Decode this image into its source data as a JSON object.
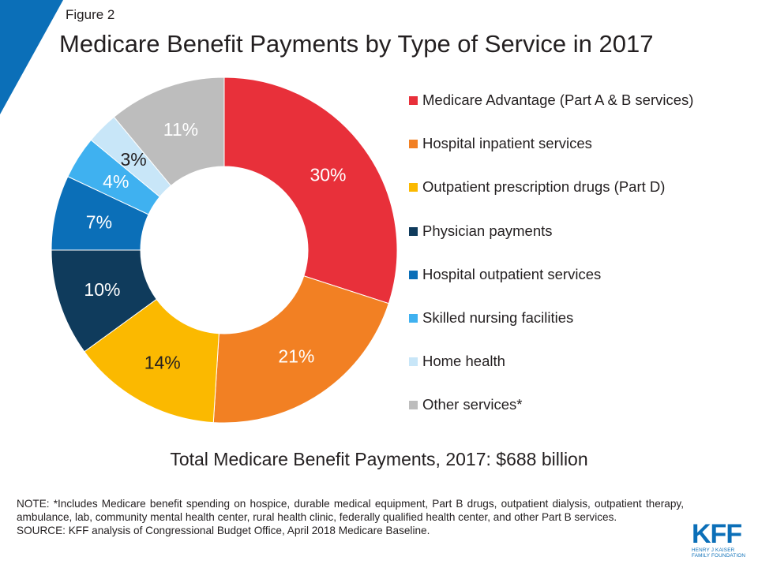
{
  "header": {
    "figure_label": "Figure 2",
    "title": "Medicare Benefit Payments by Type of Service in 2017"
  },
  "colors": {
    "accent": "#0b6fb8",
    "text": "#231f20"
  },
  "chart_data": {
    "type": "pie",
    "style": "donut",
    "legend_placement": "right",
    "categories": [
      "Medicare Advantage (Part A & B services)",
      "Hospital inpatient services",
      "Outpatient prescription drugs (Part D)",
      "Physician payments",
      "Hospital outpatient services",
      "Skilled nursing facilities",
      "Home health",
      "Other services*"
    ],
    "values": [
      30,
      21,
      14,
      10,
      7,
      4,
      3,
      11
    ],
    "data_labels": [
      "30%",
      "21%",
      "14%",
      "10%",
      "7%",
      "4%",
      "3%",
      "11%"
    ],
    "colors": [
      "#e8303a",
      "#f28023",
      "#fbb900",
      "#0f3b5c",
      "#0b6fb8",
      "#3fb1f0",
      "#c8e6f8",
      "#bdbdbd"
    ],
    "label_colors": [
      "#ffffff",
      "#ffffff",
      "#231f20",
      "#ffffff",
      "#ffffff",
      "#ffffff",
      "#231f20",
      "#ffffff"
    ]
  },
  "total_text": "Total Medicare Benefit Payments, 2017: $688 billion",
  "note": {
    "note_text": "NOTE: *Includes Medicare benefit spending on hospice, durable medical equipment, Part B drugs, outpatient dialysis, outpatient therapy, ambulance, lab, community mental health center, rural health clinic, federally qualified health center, and other Part B services.",
    "source_text": "SOURCE: KFF analysis of Congressional Budget Office, April 2018 Medicare Baseline."
  },
  "logo": {
    "mark": "KFF",
    "line1": "HENRY J KAISER",
    "line2": "FAMILY FOUNDATION"
  }
}
